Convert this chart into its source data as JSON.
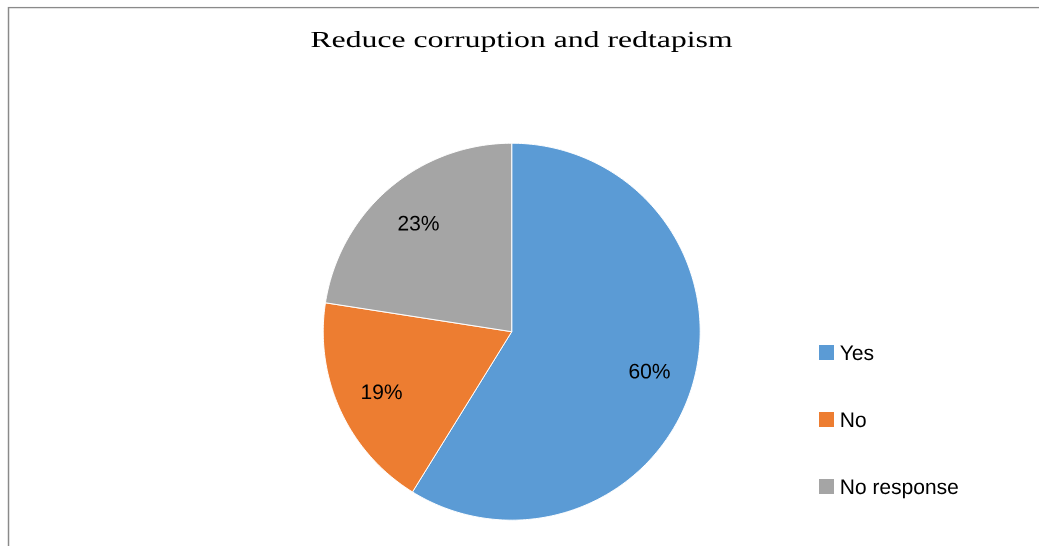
{
  "chart_data": {
    "type": "pie",
    "title": "Reduce corruption and redtapism",
    "categories": [
      "Yes",
      "No",
      "No response"
    ],
    "values": [
      60,
      19,
      23
    ],
    "colors": [
      "#5b9bd5",
      "#ed7d31",
      "#a5a5a5"
    ],
    "value_labels": [
      "60%",
      "19%",
      "23%"
    ],
    "legend": "right"
  }
}
